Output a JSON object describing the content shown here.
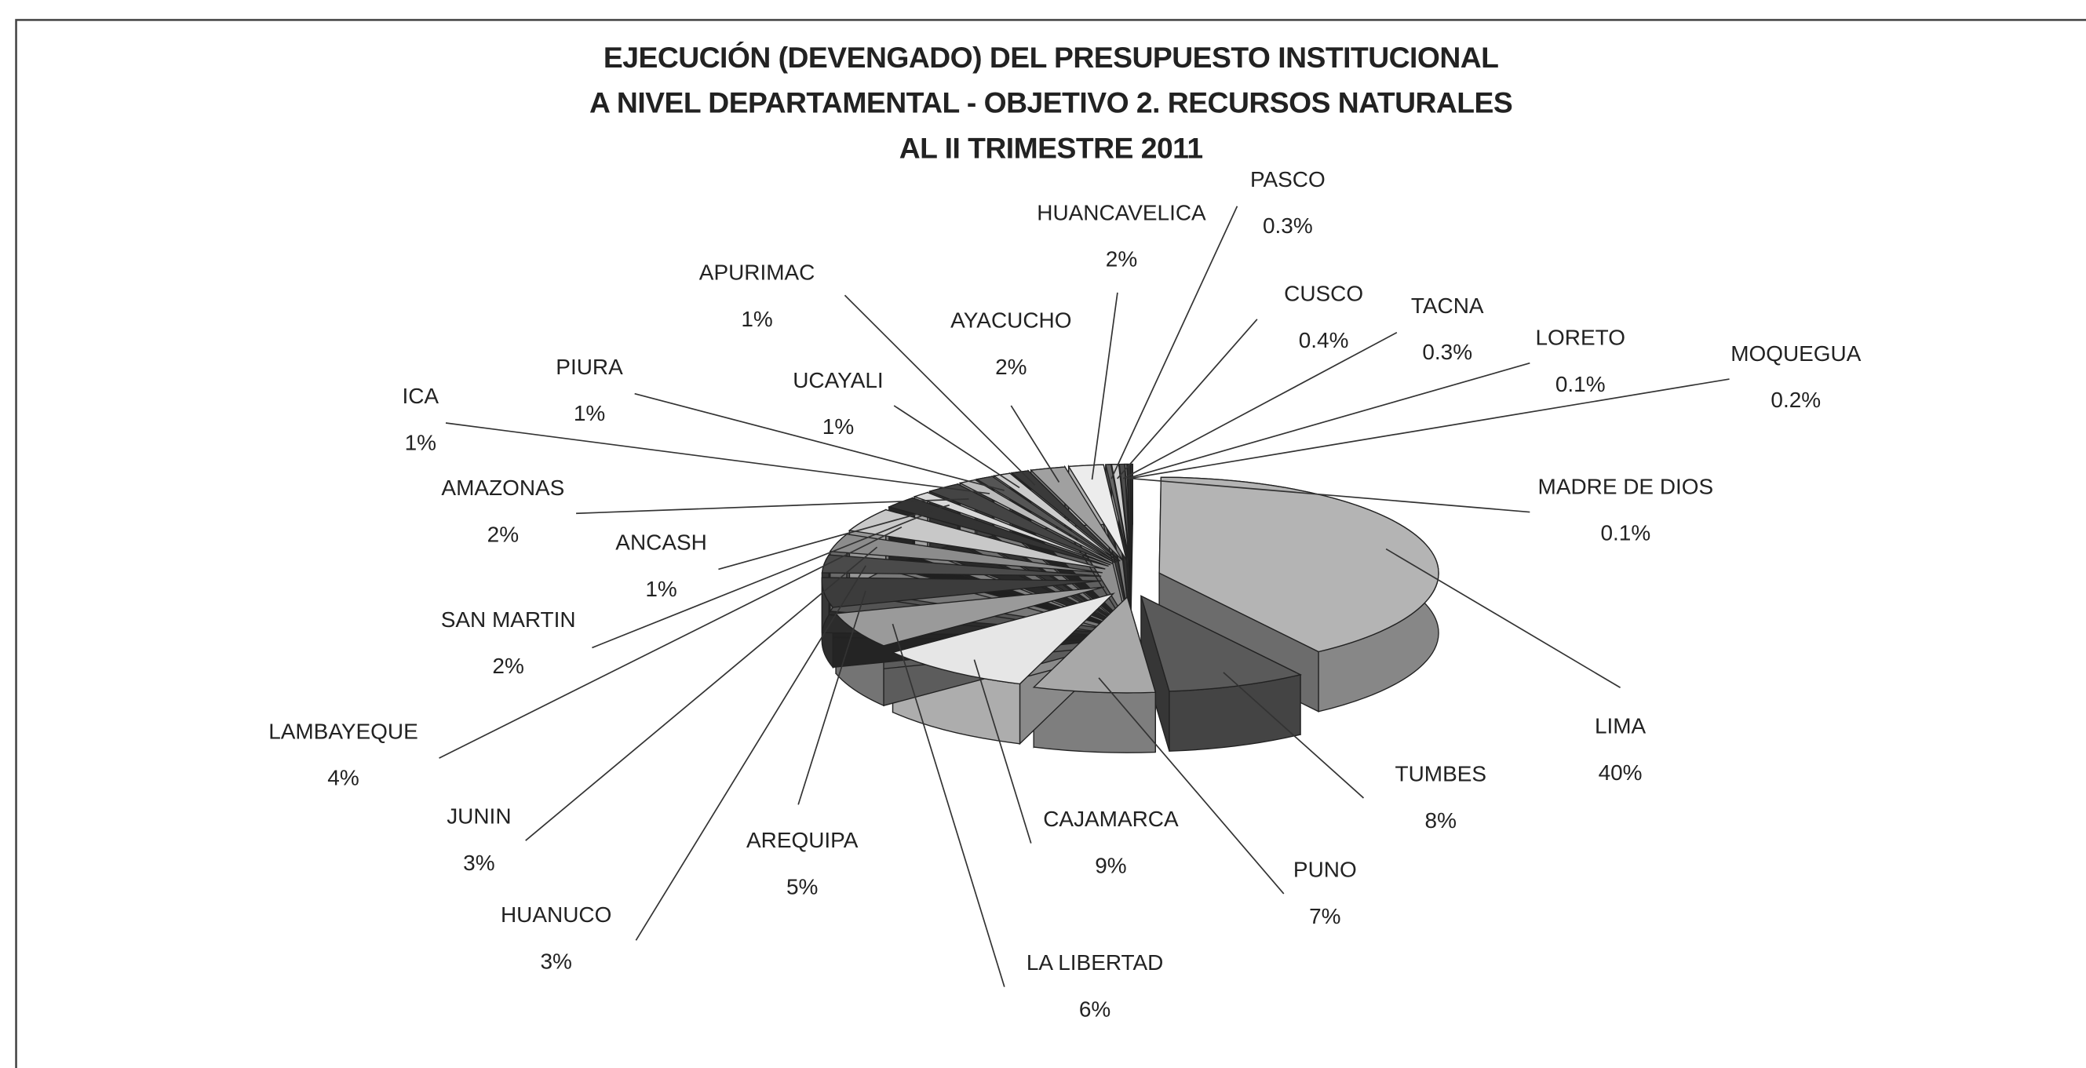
{
  "chart_data": {
    "type": "pie",
    "title": [
      "EJECUCIÓN (DEVENGADO) DEL PRESUPUESTO INSTITUCIONAL",
      "A NIVEL DEPARTAMENTAL - OBJETIVO 2. RECURSOS NATURALES",
      "AL II TRIMESTRE 2011"
    ],
    "categories": [
      "MADRE DE DIOS",
      "LIMA",
      "TUMBES",
      "PUNO",
      "CAJAMARCA",
      "LA LIBERTAD",
      "AREQUIPA",
      "HUANUCO",
      "JUNIN",
      "LAMBAYEQUE",
      "SAN MARTIN",
      "ANCASH",
      "AMAZONAS",
      "ICA",
      "PIURA",
      "UCAYALI",
      "APURIMAC",
      "AYACUCHO",
      "HUANCAVELICA",
      "PASCO",
      "CUSCO",
      "TACNA",
      "LORETO",
      "MOQUEGUA"
    ],
    "values": [
      0.1,
      40,
      8,
      7,
      9,
      6,
      5,
      3,
      3,
      4,
      2,
      1,
      2,
      1,
      1,
      1,
      1,
      2,
      2,
      0.3,
      0.4,
      0.3,
      0.1,
      0.2
    ],
    "value_labels": [
      "0.1%",
      "40%",
      "8%",
      "7%",
      "9%",
      "6%",
      "5%",
      "3%",
      "3%",
      "4%",
      "2%",
      "1%",
      "2%",
      "1%",
      "1%",
      "1%",
      "1%",
      "2%",
      "2%",
      "0.3%",
      "0.4%",
      "0.3%",
      "0.1%",
      "0.2%"
    ],
    "colors": [
      "#3a3a3a",
      "#b4b4b4",
      "#5a5a5a",
      "#a8a8a8",
      "#e6e6e6",
      "#9a9a9a",
      "#3c3c3c",
      "#4a4a4a",
      "#8c8c8c",
      "#c8c8c8",
      "#333333",
      "#d8d8d8",
      "#444444",
      "#bbbbbb",
      "#555555",
      "#cccccc",
      "#3a3a3a",
      "#a0a0a0",
      "#ececec",
      "#666666",
      "#cfcfcf",
      "#4c4c4c",
      "#999999",
      "#2e2e2e"
    ]
  }
}
